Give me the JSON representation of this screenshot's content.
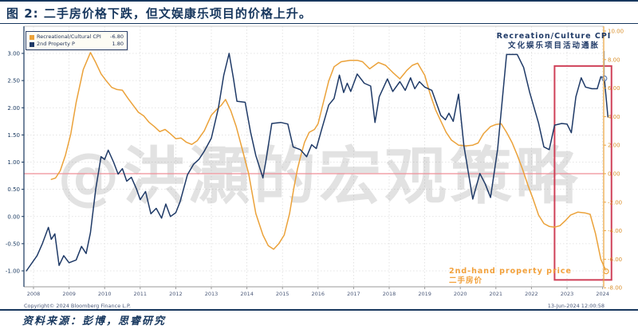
{
  "title": "图 2: 二手房价格下跌，但文娱康乐项目的价格上升。",
  "watermark": "@洪灝的宏观策略",
  "legend": {
    "entries": [
      {
        "label": "Recreational/Cultural CPI",
        "value": "-6.80",
        "color": "#eba23a"
      },
      {
        "label": "2nd Property P",
        "value": "1.80",
        "color": "#1f3a67"
      }
    ]
  },
  "annotations": {
    "cpi_en": "Recreation/Culture CPI",
    "cpi_zh": "文化娱乐项目活动通胀",
    "property_en": "2nd-hand property price",
    "property_zh": "二手房价"
  },
  "footer": {
    "copyright": "Copyright© 2024 Bloomberg Finance L.P.",
    "datetime": "13-Jun-2024 12:00:58",
    "source": "资料来源：彭博，思睿研究"
  },
  "chart_data": {
    "type": "line",
    "title": "二手房价格下跌，但文娱康乐项目的价格上升",
    "x_labels": [
      "2008",
      "2009",
      "2010",
      "2011",
      "2012",
      "2013",
      "2014",
      "2015",
      "2016",
      "2017",
      "2018",
      "2019",
      "2020",
      "2021",
      "2022",
      "2023",
      "2024"
    ],
    "left_axis": {
      "color": "#17375e",
      "tick_labels": [
        "3.00",
        "2.50",
        "2.00",
        "1.50",
        "1.00",
        "0.50",
        "0.00",
        "-0.50",
        "-1.00"
      ],
      "tick_values": [
        3.0,
        2.5,
        2.0,
        1.5,
        1.0,
        0.5,
        0.0,
        -0.5,
        -1.0
      ],
      "range": [
        -1.3,
        3.5
      ]
    },
    "right_axis": {
      "color": "#eba23a",
      "tick_labels": [
        "10.00",
        "8.00",
        "6.00",
        "4.00",
        "2.00",
        "0.00",
        "-2.00",
        "-4.00",
        "-6.00",
        "-8.00"
      ],
      "tick_values": [
        10,
        8,
        6,
        4,
        2,
        0,
        -2,
        -4,
        -6,
        -8
      ],
      "range": [
        -8,
        10.2
      ]
    },
    "zero_line": {
      "axis": "right",
      "value": 0,
      "color": "#ef8f98"
    },
    "highlight_box": {
      "year_start": 2022.65,
      "year_end": 2024.25,
      "right_top": 7.55,
      "right_bottom": -7.45,
      "color": "#cf4158"
    },
    "cursor": {
      "year": 2024.05,
      "left_val": 2.54,
      "right_top": 8.6,
      "color": "#8fa2c4"
    },
    "end_markers": [
      {
        "year": 2024.05,
        "axis": "left",
        "value": 2.54,
        "color": "#5b7fb5"
      },
      {
        "year": 2024.1,
        "axis": "right",
        "value": -6.85,
        "color": "#eba23a"
      }
    ],
    "series": [
      {
        "name": "Recreational/Cultural CPI",
        "axis": "right",
        "color": "#eba23a",
        "last_value": -6.8,
        "points": [
          [
            2008.5,
            -0.4
          ],
          [
            2008.62,
            -0.3
          ],
          [
            2008.75,
            0.2
          ],
          [
            2008.9,
            1.3
          ],
          [
            2009.05,
            2.8
          ],
          [
            2009.2,
            5.0
          ],
          [
            2009.4,
            7.3
          ],
          [
            2009.6,
            8.5
          ],
          [
            2009.75,
            7.8
          ],
          [
            2009.9,
            7.0
          ],
          [
            2010.05,
            6.5
          ],
          [
            2010.2,
            6.05
          ],
          [
            2010.35,
            5.9
          ],
          [
            2010.5,
            5.85
          ],
          [
            2010.65,
            5.3
          ],
          [
            2010.8,
            4.8
          ],
          [
            2010.95,
            4.3
          ],
          [
            2011.1,
            4.05
          ],
          [
            2011.25,
            3.6
          ],
          [
            2011.4,
            3.3
          ],
          [
            2011.55,
            2.95
          ],
          [
            2011.7,
            3.1
          ],
          [
            2011.85,
            2.8
          ],
          [
            2012.0,
            2.45
          ],
          [
            2012.15,
            2.5
          ],
          [
            2012.3,
            2.2
          ],
          [
            2012.45,
            2.05
          ],
          [
            2012.6,
            2.3
          ],
          [
            2012.8,
            3.0
          ],
          [
            2013.0,
            4.1
          ],
          [
            2013.15,
            4.5
          ],
          [
            2013.28,
            4.8
          ],
          [
            2013.4,
            5.2
          ],
          [
            2013.55,
            4.4
          ],
          [
            2013.7,
            3.3
          ],
          [
            2013.85,
            1.9
          ],
          [
            2014.05,
            0.0
          ],
          [
            2014.25,
            -2.8
          ],
          [
            2014.45,
            -4.3
          ],
          [
            2014.6,
            -5.05
          ],
          [
            2014.75,
            -5.3
          ],
          [
            2014.9,
            -4.9
          ],
          [
            2015.05,
            -4.3
          ],
          [
            2015.2,
            -2.8
          ],
          [
            2015.32,
            -1.0
          ],
          [
            2015.42,
            0.3
          ],
          [
            2015.52,
            1.3
          ],
          [
            2015.62,
            2.2
          ],
          [
            2015.75,
            2.9
          ],
          [
            2015.9,
            3.1
          ],
          [
            2016.0,
            3.5
          ],
          [
            2016.15,
            5.0
          ],
          [
            2016.3,
            6.5
          ],
          [
            2016.45,
            7.5
          ],
          [
            2016.65,
            7.85
          ],
          [
            2016.9,
            7.95
          ],
          [
            2017.1,
            7.95
          ],
          [
            2017.25,
            7.85
          ],
          [
            2017.45,
            7.35
          ],
          [
            2017.7,
            7.8
          ],
          [
            2017.9,
            7.6
          ],
          [
            2018.1,
            7.1
          ],
          [
            2018.3,
            6.65
          ],
          [
            2018.5,
            7.25
          ],
          [
            2018.65,
            7.6
          ],
          [
            2018.8,
            7.75
          ],
          [
            2019.0,
            6.9
          ],
          [
            2019.15,
            5.6
          ],
          [
            2019.3,
            4.5
          ],
          [
            2019.45,
            3.7
          ],
          [
            2019.6,
            2.9
          ],
          [
            2019.75,
            2.35
          ],
          [
            2019.95,
            2.0
          ],
          [
            2020.15,
            1.95
          ],
          [
            2020.35,
            2.0
          ],
          [
            2020.5,
            2.15
          ],
          [
            2020.65,
            2.8
          ],
          [
            2020.85,
            3.3
          ],
          [
            2021.0,
            3.45
          ],
          [
            2021.15,
            3.5
          ],
          [
            2021.3,
            2.9
          ],
          [
            2021.45,
            2.2
          ],
          [
            2021.6,
            1.3
          ],
          [
            2021.75,
            0.3
          ],
          [
            2021.9,
            -0.8
          ],
          [
            2022.05,
            -1.8
          ],
          [
            2022.2,
            -2.9
          ],
          [
            2022.35,
            -3.5
          ],
          [
            2022.5,
            -3.7
          ],
          [
            2022.65,
            -3.75
          ],
          [
            2022.8,
            -3.65
          ],
          [
            2022.95,
            -3.3
          ],
          [
            2023.1,
            -2.9
          ],
          [
            2023.3,
            -2.7
          ],
          [
            2023.5,
            -2.75
          ],
          [
            2023.65,
            -2.85
          ],
          [
            2023.8,
            -4.2
          ],
          [
            2023.95,
            -6.0
          ],
          [
            2024.1,
            -6.85
          ]
        ]
      },
      {
        "name": "2nd Property P",
        "axis": "left",
        "color": "#1f3a67",
        "last_value": 1.8,
        "points": [
          [
            2007.8,
            -1.0
          ],
          [
            2008.1,
            -0.72
          ],
          [
            2008.25,
            -0.5
          ],
          [
            2008.42,
            -0.2
          ],
          [
            2008.5,
            -0.42
          ],
          [
            2008.6,
            -0.32
          ],
          [
            2008.72,
            -0.9
          ],
          [
            2008.85,
            -0.72
          ],
          [
            2009.0,
            -0.85
          ],
          [
            2009.2,
            -0.8
          ],
          [
            2009.35,
            -0.55
          ],
          [
            2009.48,
            -0.68
          ],
          [
            2009.6,
            -0.3
          ],
          [
            2009.75,
            0.5
          ],
          [
            2009.9,
            1.1
          ],
          [
            2010.0,
            1.05
          ],
          [
            2010.1,
            1.22
          ],
          [
            2010.25,
            1.0
          ],
          [
            2010.38,
            0.78
          ],
          [
            2010.5,
            0.88
          ],
          [
            2010.62,
            0.65
          ],
          [
            2010.75,
            0.72
          ],
          [
            2010.9,
            0.5
          ],
          [
            2011.0,
            0.31
          ],
          [
            2011.15,
            0.46
          ],
          [
            2011.3,
            0.05
          ],
          [
            2011.45,
            0.15
          ],
          [
            2011.6,
            -0.03
          ],
          [
            2011.72,
            0.23
          ],
          [
            2011.85,
            0.0
          ],
          [
            2012.0,
            0.07
          ],
          [
            2012.12,
            0.27
          ],
          [
            2012.33,
            0.77
          ],
          [
            2012.5,
            0.96
          ],
          [
            2012.65,
            1.05
          ],
          [
            2012.8,
            1.2
          ],
          [
            2013.0,
            1.44
          ],
          [
            2013.2,
            2.0
          ],
          [
            2013.35,
            2.6
          ],
          [
            2013.5,
            3.0
          ],
          [
            2013.62,
            2.54
          ],
          [
            2013.72,
            2.12
          ],
          [
            2013.95,
            2.1
          ],
          [
            2014.1,
            1.56
          ],
          [
            2014.25,
            1.12
          ],
          [
            2014.45,
            0.71
          ],
          [
            2014.55,
            1.08
          ],
          [
            2014.7,
            1.71
          ],
          [
            2014.95,
            1.73
          ],
          [
            2015.15,
            1.7
          ],
          [
            2015.3,
            1.28
          ],
          [
            2015.5,
            1.23
          ],
          [
            2015.68,
            1.1
          ],
          [
            2015.82,
            1.32
          ],
          [
            2015.95,
            1.25
          ],
          [
            2016.1,
            1.6
          ],
          [
            2016.3,
            2.05
          ],
          [
            2016.45,
            2.17
          ],
          [
            2016.6,
            2.6
          ],
          [
            2016.72,
            2.28
          ],
          [
            2016.82,
            2.45
          ],
          [
            2016.92,
            2.3
          ],
          [
            2017.1,
            2.62
          ],
          [
            2017.3,
            2.45
          ],
          [
            2017.48,
            2.4
          ],
          [
            2017.6,
            1.73
          ],
          [
            2017.72,
            2.2
          ],
          [
            2017.95,
            2.53
          ],
          [
            2018.1,
            2.3
          ],
          [
            2018.3,
            2.48
          ],
          [
            2018.45,
            2.32
          ],
          [
            2018.6,
            2.55
          ],
          [
            2018.72,
            2.35
          ],
          [
            2018.85,
            2.48
          ],
          [
            2019.0,
            2.38
          ],
          [
            2019.2,
            2.32
          ],
          [
            2019.45,
            1.86
          ],
          [
            2019.58,
            1.78
          ],
          [
            2019.68,
            1.9
          ],
          [
            2019.8,
            1.75
          ],
          [
            2019.95,
            2.25
          ],
          [
            2020.1,
            1.3
          ],
          [
            2020.35,
            0.32
          ],
          [
            2020.55,
            0.79
          ],
          [
            2020.7,
            0.6
          ],
          [
            2020.85,
            0.35
          ],
          [
            2021.05,
            1.24
          ],
          [
            2021.3,
            2.98
          ],
          [
            2021.6,
            2.98
          ],
          [
            2021.78,
            2.74
          ],
          [
            2021.95,
            2.28
          ],
          [
            2022.2,
            1.72
          ],
          [
            2022.35,
            1.28
          ],
          [
            2022.5,
            1.23
          ],
          [
            2022.65,
            1.68
          ],
          [
            2022.85,
            1.71
          ],
          [
            2023.0,
            1.7
          ],
          [
            2023.12,
            1.54
          ],
          [
            2023.25,
            2.2
          ],
          [
            2023.4,
            2.55
          ],
          [
            2023.52,
            2.38
          ],
          [
            2023.7,
            2.35
          ],
          [
            2023.85,
            2.35
          ],
          [
            2023.95,
            2.57
          ],
          [
            2024.05,
            2.54
          ],
          [
            2024.15,
            1.83
          ]
        ]
      }
    ]
  }
}
